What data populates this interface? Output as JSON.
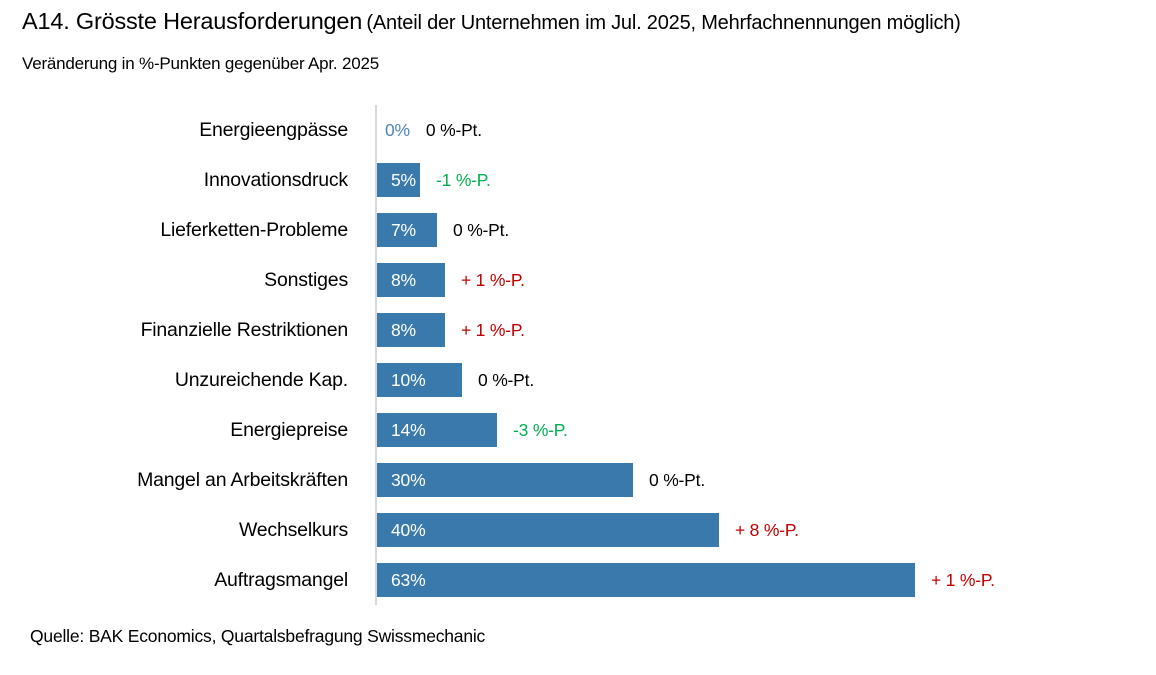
{
  "title": {
    "main": "A14. Grösste Herausforderungen",
    "paren": "(Anteil der Unternehmen im Jul. 2025, Mehrfachnennungen möglich)",
    "subtitle": "Veränderung in %-Punkten gegenüber Apr. 2025"
  },
  "source": "Quelle: BAK Economics, Quartalsbefragung Swissmechanic",
  "colors": {
    "bar": "#3979ab",
    "zero_value_label": "#4e84bc",
    "increase": "#c00000",
    "decrease": "#00b050",
    "neutral": "#000000",
    "axis": "#d9d9d9"
  },
  "rows": [
    {
      "category": "Energieengpässe",
      "value": 0,
      "value_label": "0%",
      "change_label": "0 %-Pt.",
      "change_type": "neutral"
    },
    {
      "category": "Innovationsdruck",
      "value": 5,
      "value_label": "5%",
      "change_label": "-1 %-P.",
      "change_type": "decrease"
    },
    {
      "category": "Lieferketten-Probleme",
      "value": 7,
      "value_label": "7%",
      "change_label": "0 %-Pt.",
      "change_type": "neutral"
    },
    {
      "category": "Sonstiges",
      "value": 8,
      "value_label": "8%",
      "change_label": "+ 1 %-P.",
      "change_type": "increase"
    },
    {
      "category": "Finanzielle Restriktionen",
      "value": 8,
      "value_label": "8%",
      "change_label": "+ 1 %-P.",
      "change_type": "increase"
    },
    {
      "category": "Unzureichende Kap.",
      "value": 10,
      "value_label": "10%",
      "change_label": "0 %-Pt.",
      "change_type": "neutral"
    },
    {
      "category": "Energiepreise",
      "value": 14,
      "value_label": "14%",
      "change_label": "-3 %-P.",
      "change_type": "decrease"
    },
    {
      "category": "Mangel an Arbeitskräften",
      "value": 30,
      "value_label": "30%",
      "change_label": "0 %-Pt.",
      "change_type": "neutral"
    },
    {
      "category": "Wechselkurs",
      "value": 40,
      "value_label": "40%",
      "change_label": "+ 8 %-P.",
      "change_type": "increase"
    },
    {
      "category": "Auftragsmangel",
      "value": 63,
      "value_label": "63%",
      "change_label": "+ 1 %-P.",
      "change_type": "increase"
    }
  ],
  "chart_data": {
    "type": "bar",
    "orientation": "horizontal",
    "title": "A14. Grösste Herausforderungen (Anteil der Unternehmen im Jul. 2025, Mehrfachnennungen möglich)",
    "subtitle": "Veränderung in %-Punkten gegenüber Apr. 2025",
    "categories": [
      "Energieengpässe",
      "Innovationsdruck",
      "Lieferketten-Probleme",
      "Sonstiges",
      "Finanzielle Restriktionen",
      "Unzureichende Kap.",
      "Energiepreise",
      "Mangel an Arbeitskräften",
      "Wechselkurs",
      "Auftragsmangel"
    ],
    "values": [
      0,
      5,
      7,
      8,
      8,
      10,
      14,
      30,
      40,
      63
    ],
    "value_labels": [
      "0%",
      "5%",
      "7%",
      "8%",
      "8%",
      "10%",
      "14%",
      "30%",
      "40%",
      "63%"
    ],
    "change_pct_points": [
      0,
      -1,
      0,
      1,
      1,
      0,
      -3,
      0,
      8,
      1
    ],
    "change_labels": [
      "0 %-Pt.",
      "-1 %-P.",
      "0 %-Pt.",
      "+ 1 %-P.",
      "+ 1 %-P.",
      "0 %-Pt.",
      "-3 %-P.",
      "0 %-Pt.",
      "+ 8 %-P.",
      "+ 1 %-P."
    ],
    "xlabel": "",
    "ylabel": "",
    "xlim": [
      0,
      66
    ],
    "grid": false,
    "legend": false,
    "source": "Quelle: BAK Economics, Quartalsbefragung Swissmechanic"
  }
}
